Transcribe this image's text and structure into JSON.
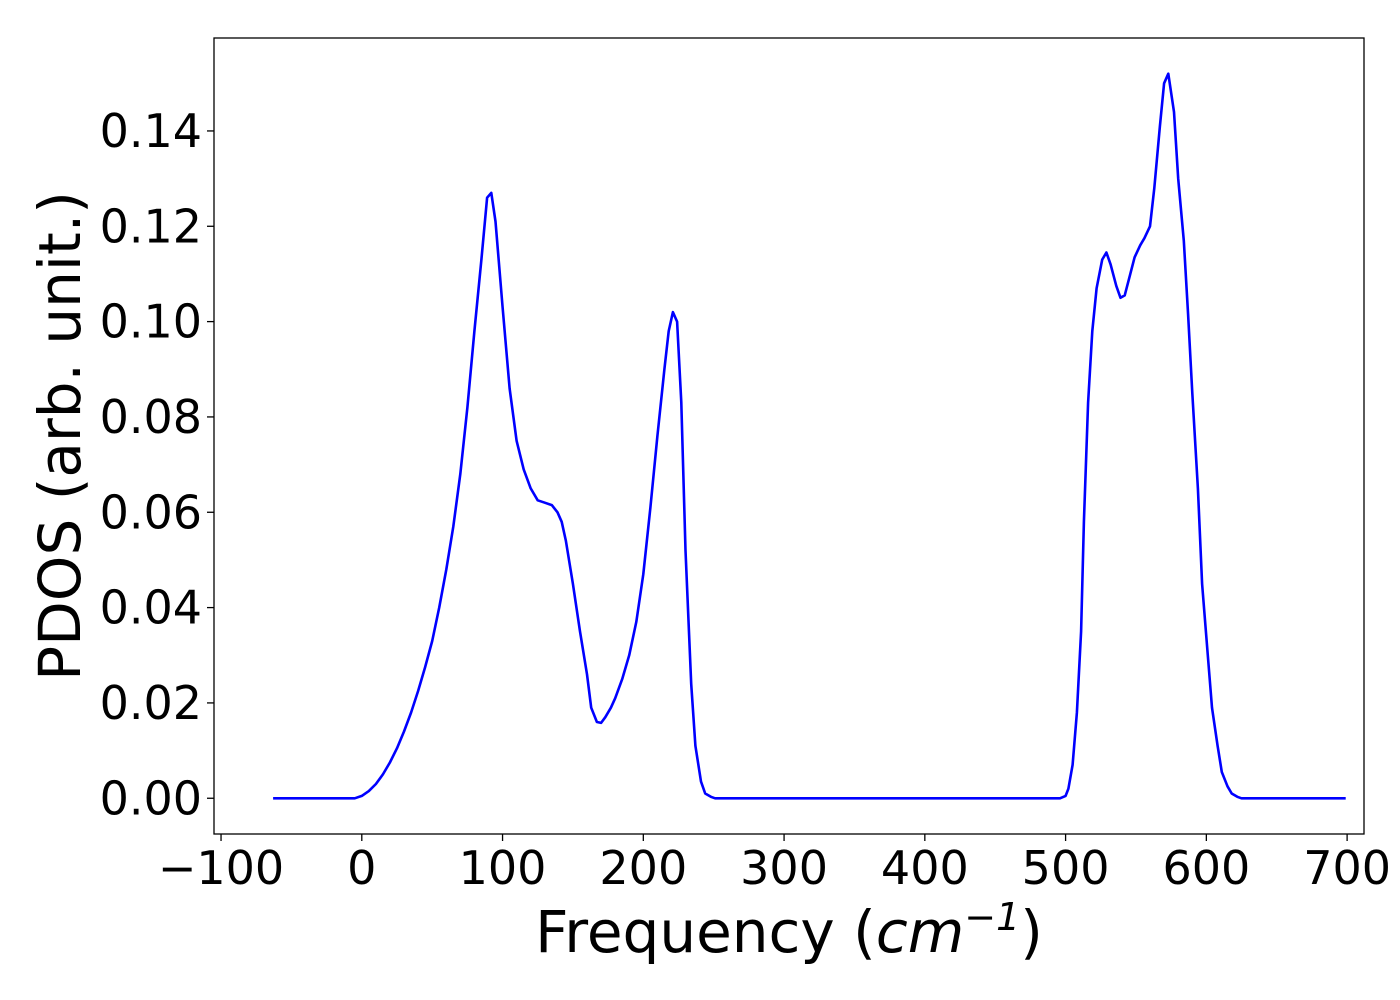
{
  "chart_data": {
    "type": "line",
    "title": "",
    "xlabel": {
      "prefix": "Frequency (",
      "unit": "cm",
      "exponent": "−1",
      "suffix": ")"
    },
    "ylabel": "PDOS (arb. unit.)",
    "xlim": [
      -105,
      712
    ],
    "ylim": [
      -0.0075,
      0.1595
    ],
    "xticks": [
      -100,
      0,
      100,
      200,
      300,
      400,
      500,
      600,
      700
    ],
    "xtick_labels": [
      "−100",
      "0",
      "100",
      "200",
      "300",
      "400",
      "500",
      "600",
      "700"
    ],
    "yticks": [
      0.0,
      0.02,
      0.04,
      0.06,
      0.08,
      0.1,
      0.12,
      0.14
    ],
    "ytick_labels": [
      "0.00",
      "0.02",
      "0.04",
      "0.06",
      "0.08",
      "0.10",
      "0.12",
      "0.14"
    ],
    "grid": false,
    "line_color": "#0000ff",
    "series": [
      {
        "x": [
          -63,
          -20,
          -5,
          0,
          5,
          10,
          15,
          20,
          25,
          30,
          35,
          40,
          45,
          50,
          55,
          60,
          65,
          70,
          75,
          80,
          85,
          89,
          92,
          95,
          100,
          105,
          110,
          115,
          120,
          125,
          130,
          135,
          139,
          142,
          145,
          150,
          155,
          160,
          163,
          167,
          170,
          173,
          177,
          180,
          185,
          190,
          195,
          200,
          205,
          210,
          215,
          218,
          221,
          224,
          227,
          230,
          234,
          237,
          241,
          244,
          248,
          251,
          255,
          260,
          300,
          400,
          490,
          496,
          500,
          502,
          505,
          508,
          511,
          513,
          516,
          519,
          522,
          526,
          529,
          532,
          536,
          539,
          542,
          546,
          549,
          553,
          556,
          560,
          563,
          567,
          570,
          573,
          577,
          580,
          584,
          587,
          590,
          594,
          597,
          601,
          604,
          608,
          611,
          615,
          618,
          622,
          625,
          628,
          632,
          635,
          639,
          642,
          646,
          651,
          660,
          699
        ],
        "y": [
          0.0,
          0.0,
          0.0,
          0.0005,
          0.0015,
          0.003,
          0.005,
          0.0075,
          0.0105,
          0.014,
          0.018,
          0.0225,
          0.0275,
          0.033,
          0.04,
          0.048,
          0.057,
          0.068,
          0.082,
          0.098,
          0.113,
          0.126,
          0.127,
          0.121,
          0.103,
          0.086,
          0.075,
          0.069,
          0.065,
          0.0625,
          0.062,
          0.0615,
          0.06,
          0.058,
          0.054,
          0.045,
          0.035,
          0.026,
          0.019,
          0.016,
          0.0158,
          0.017,
          0.019,
          0.021,
          0.025,
          0.03,
          0.037,
          0.047,
          0.061,
          0.076,
          0.09,
          0.098,
          0.102,
          0.1,
          0.083,
          0.052,
          0.024,
          0.011,
          0.0035,
          0.001,
          0.0003,
          0.0,
          0.0,
          0.0,
          0.0,
          0.0,
          0.0,
          0.0,
          0.0005,
          0.002,
          0.007,
          0.018,
          0.035,
          0.058,
          0.083,
          0.098,
          0.107,
          0.113,
          0.1145,
          0.112,
          0.1075,
          0.105,
          0.1055,
          0.11,
          0.1135,
          0.116,
          0.1175,
          0.12,
          0.128,
          0.141,
          0.15,
          0.152,
          0.144,
          0.13,
          0.117,
          0.1015,
          0.085,
          0.065,
          0.045,
          0.03,
          0.019,
          0.011,
          0.0055,
          0.0025,
          0.001,
          0.0003,
          0.0,
          0.0,
          0.0,
          0.0,
          0.0,
          0.0,
          0.0,
          0.0,
          0.0,
          0.0
        ]
      }
    ]
  }
}
